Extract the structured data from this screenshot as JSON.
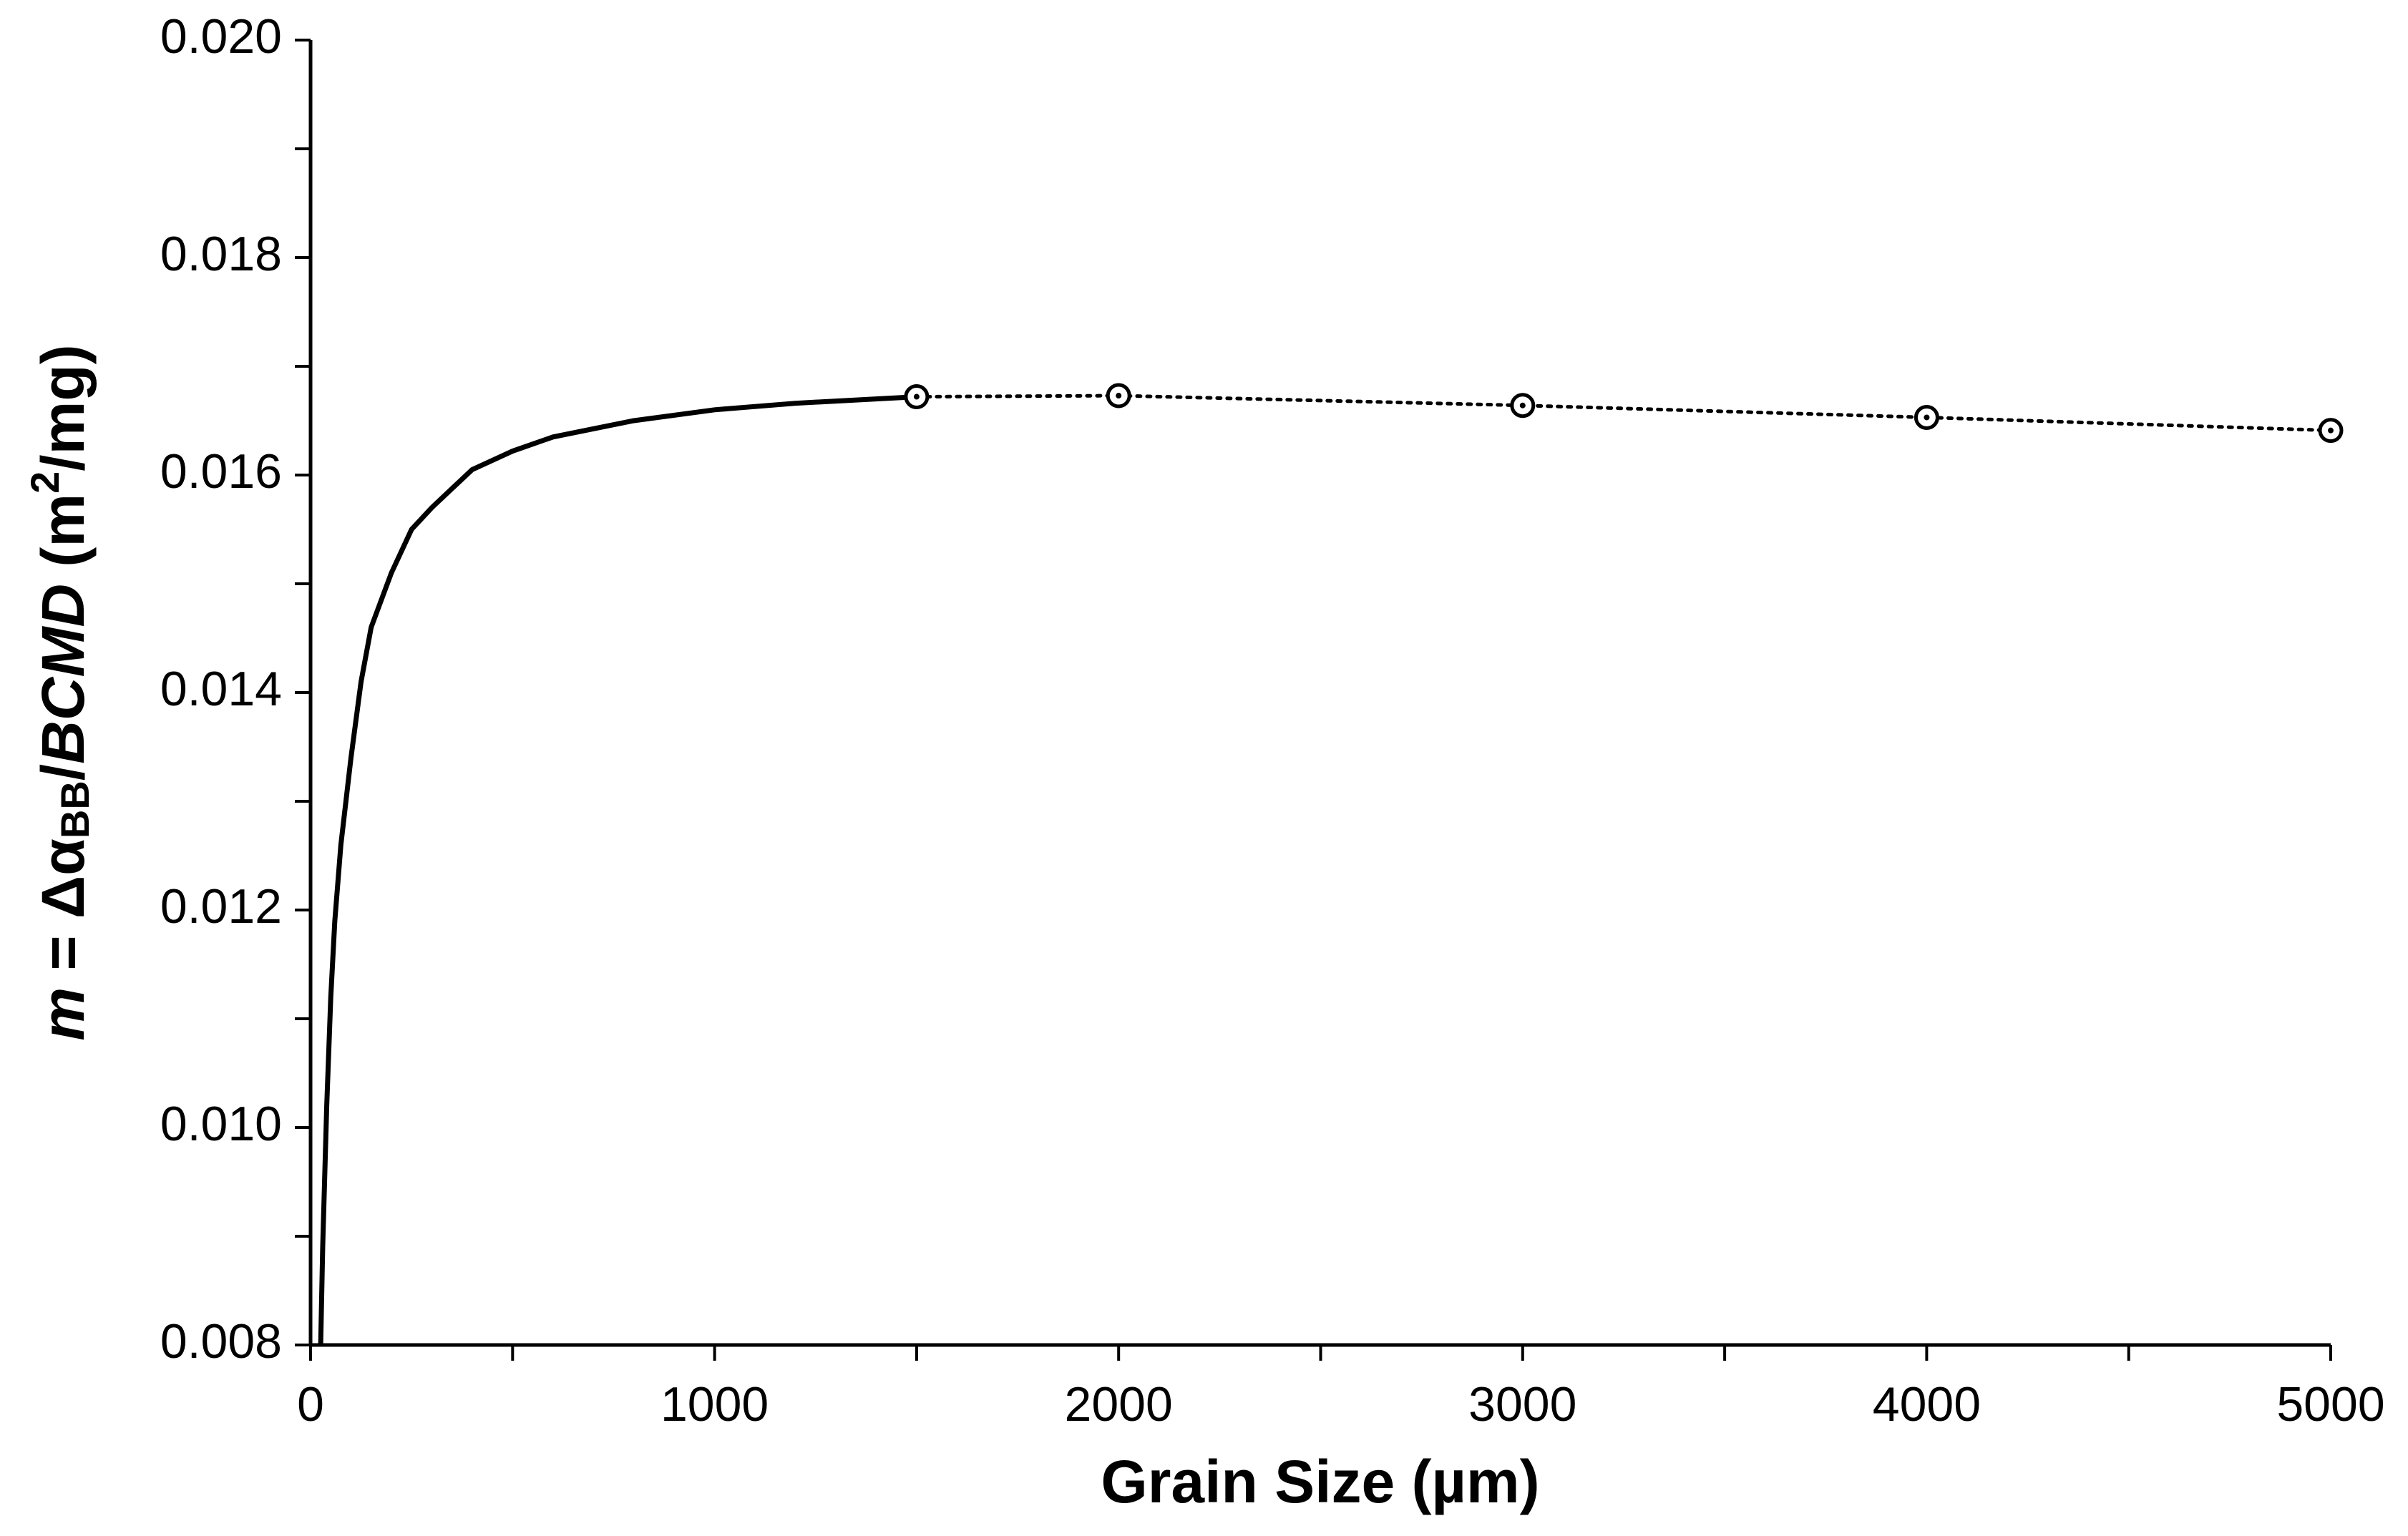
{
  "chart_data": {
    "type": "line",
    "x_label": "Grain Size (µm)",
    "y_label_parts": [
      "m",
      " = Δα",
      "BB",
      "/",
      "BCMD",
      " (m",
      "2",
      "/mg)"
    ],
    "xlim": [
      0,
      5000
    ],
    "ylim": [
      0.008,
      0.02
    ],
    "xticks": [
      0,
      1000,
      2000,
      3000,
      4000,
      5000
    ],
    "xticks_minor": [
      500,
      1500,
      2500,
      3500,
      4500
    ],
    "yticks": [
      {
        "value": 0.008,
        "label": "0.008"
      },
      {
        "value": 0.01,
        "label": "0.010"
      },
      {
        "value": 0.012,
        "label": "0.012"
      },
      {
        "value": 0.014,
        "label": "0.014"
      },
      {
        "value": 0.016,
        "label": "0.016"
      },
      {
        "value": 0.018,
        "label": "0.018"
      },
      {
        "value": 0.02,
        "label": "0.020"
      }
    ],
    "yticks_minor": [
      0.009,
      0.011,
      0.013,
      0.015,
      0.017,
      0.019
    ],
    "grid": false,
    "series": [
      {
        "color": "#000000",
        "style": "solid",
        "marker": "none",
        "x": [
          25,
          30,
          40,
          50,
          60,
          75,
          100,
          125,
          150,
          200,
          250,
          300,
          400,
          500,
          600,
          800,
          1000,
          1200,
          1500
        ],
        "values": [
          0.008,
          0.0089,
          0.0102,
          0.0112,
          0.0119,
          0.0126,
          0.0134,
          0.0141,
          0.0146,
          0.0151,
          0.0155,
          0.0157,
          0.01605,
          0.01622,
          0.01635,
          0.0165,
          0.0166,
          0.01666,
          0.01672
        ]
      },
      {
        "color": "#000000",
        "style": "dotted",
        "marker": "circle",
        "x": [
          1500,
          2000,
          3000,
          4000,
          5000
        ],
        "values": [
          0.01672,
          0.01673,
          0.01664,
          0.01653,
          0.01641
        ]
      }
    ]
  }
}
